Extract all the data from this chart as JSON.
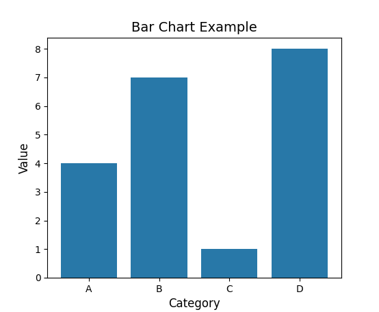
{
  "categories": [
    "A",
    "B",
    "C",
    "D"
  ],
  "values": [
    4,
    7,
    1,
    8
  ],
  "bar_color": "#2878a8",
  "title": "Bar Chart Example",
  "xlabel": "Category",
  "ylabel": "Value",
  "title_fontsize": 14,
  "label_fontsize": 12,
  "figsize": [
    5.54,
    4.55
  ],
  "dpi": 100
}
